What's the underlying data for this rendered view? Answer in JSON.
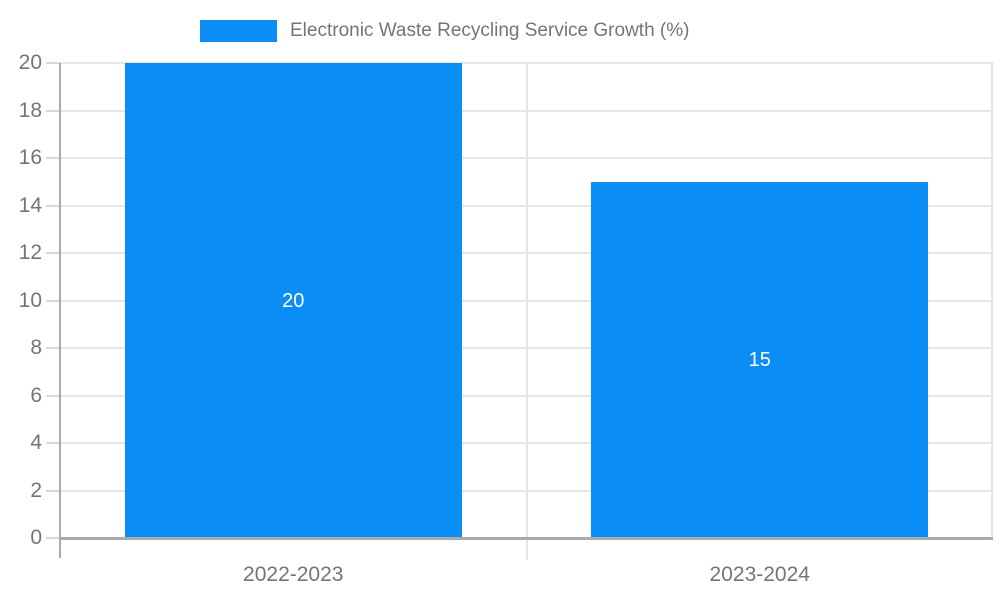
{
  "chart_data": {
    "type": "bar",
    "title": "Electronic Waste Recycling Service Growth (%)",
    "legend": {
      "position": "top",
      "entries": [
        {
          "label": "Electronic Waste Recycling Service Growth (%)",
          "color": "#0a8ef5"
        }
      ]
    },
    "categories": [
      "2022-2023",
      "2023-2024"
    ],
    "values": [
      20,
      15
    ],
    "data_labels": [
      "20",
      "15"
    ],
    "xlabel": "",
    "ylabel": "",
    "ylim": [
      0,
      20
    ],
    "ytick_step": 2,
    "yticks": [
      0,
      2,
      4,
      6,
      8,
      10,
      12,
      14,
      16,
      18,
      20
    ],
    "grid": true,
    "colors": {
      "bar": "#0a8ef5",
      "gridline": "#e6e6e6",
      "tick_line": "#d9d9d9",
      "axis_line": "#aaaaaa",
      "tick_text": "#757575",
      "data_label_text": "#ffffff",
      "background": "#ffffff"
    }
  }
}
